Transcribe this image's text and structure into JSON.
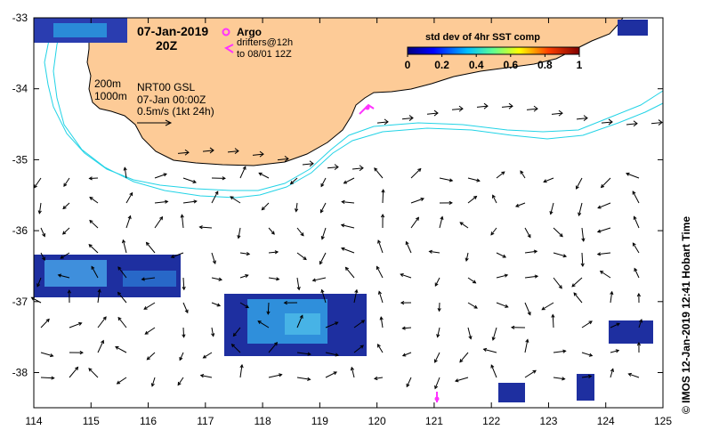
{
  "map": {
    "title_date": "07-Jan-2019",
    "title_time": "20Z",
    "legend_argo_label": "Argo",
    "legend_drifters_label": "drifters@12h",
    "legend_drifters_window": "to 08/01 12Z",
    "isobath_200_label": "200m",
    "isobath_1000_label": "1000m",
    "product_label": "NRT00 GSL",
    "product_date": "07-Jan 00:00Z",
    "velocity_scale_label": "0.5m/s (1kt 24h)",
    "colorbar_title": "std dev of 4hr SST comp",
    "colorbar_ticks": [
      "0",
      "0.2",
      "0.4",
      "0.6",
      "0.8",
      "1"
    ],
    "credit": "© IMOS 12-Jan-2019 12:41 Hobart Time",
    "x_ticks": [
      "114",
      "115",
      "116",
      "117",
      "118",
      "119",
      "120",
      "121",
      "122",
      "123",
      "124",
      "125"
    ],
    "y_ticks": [
      "-33",
      "-34",
      "-35",
      "-36",
      "-37",
      "-38"
    ],
    "colors": {
      "land": "#fdcb97",
      "isobath": "#22d3e6",
      "argo_marker": "#ff33ff",
      "sst_patch_dark": "#1e2fa0",
      "sst_patch_mid": "#2a8bd8"
    }
  }
}
